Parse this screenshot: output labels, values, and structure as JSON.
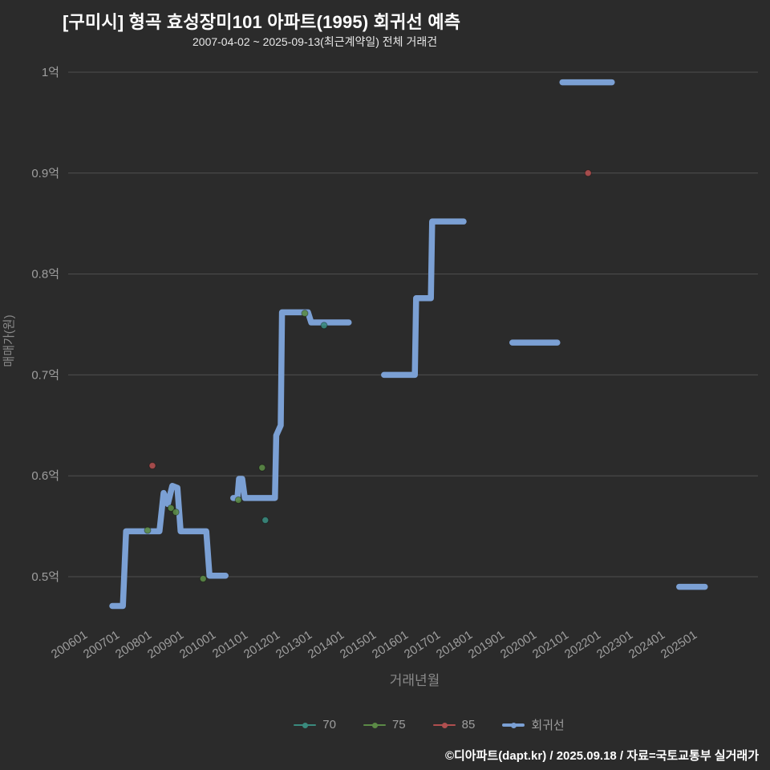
{
  "title": "[구미시] 형곡 효성장미101 아파트(1995) 회귀선 예측",
  "subtitle": "2007-04-02 ~ 2025-09-13(최근계약일) 전체 거래건",
  "footer": "©디아파트(dapt.kr) / 2025.09.18 / 자료=국토교통부 실거래가",
  "colors": {
    "background": "#2b2b2b",
    "grid": "#4f4f4f",
    "title_text": "#ffffff",
    "subtitle_text": "#e8e8e8",
    "tick_text": "#9e9e9e",
    "axis_label_text": "#8a8a8a",
    "regression": "#7ba0d4",
    "s70": "#3a8a7d",
    "s75": "#5b8a46",
    "s85": "#b04f4f",
    "footer_text": "#ffffff",
    "legend_text": "#9e9e9e"
  },
  "chart_data": {
    "type": "line",
    "title": "[구미시] 형곡 효성장미101 아파트(1995) 회귀선 예측",
    "subtitle": "2007-04-02 ~ 2025-09-13(최근계약일) 전체 거래건",
    "xlabel": "거래년월",
    "ylabel": "매매가(원)",
    "ylim": [
      0.45,
      1.02
    ],
    "grid": "horizontal-only",
    "legend_position": "bottom-center",
    "yticks": [
      {
        "value": 1.0,
        "label": "1억"
      },
      {
        "value": 0.9,
        "label": "0.9억"
      },
      {
        "value": 0.8,
        "label": "0.8억"
      },
      {
        "value": 0.7,
        "label": "0.7억"
      },
      {
        "value": 0.6,
        "label": "0.6억"
      },
      {
        "value": 0.5,
        "label": "0.5억"
      }
    ],
    "xticks": [
      {
        "value": 2006,
        "label": "200601"
      },
      {
        "value": 2007,
        "label": "200701"
      },
      {
        "value": 2008,
        "label": "200801"
      },
      {
        "value": 2009,
        "label": "200901"
      },
      {
        "value": 2010,
        "label": "201001"
      },
      {
        "value": 2011,
        "label": "201101"
      },
      {
        "value": 2012,
        "label": "201201"
      },
      {
        "value": 2013,
        "label": "201301"
      },
      {
        "value": 2014,
        "label": "201401"
      },
      {
        "value": 2015,
        "label": "201501"
      },
      {
        "value": 2016,
        "label": "201601"
      },
      {
        "value": 2017,
        "label": "201701"
      },
      {
        "value": 2018,
        "label": "201801"
      },
      {
        "value": 2019,
        "label": "201901"
      },
      {
        "value": 2020,
        "label": "202001"
      },
      {
        "value": 2021,
        "label": "202101"
      },
      {
        "value": 2022,
        "label": "202201"
      },
      {
        "value": 2023,
        "label": "202301"
      },
      {
        "value": 2024,
        "label": "202401"
      },
      {
        "value": 2025,
        "label": "202501"
      }
    ],
    "legend": [
      {
        "label": "70",
        "color_key": "s70",
        "thick": false
      },
      {
        "label": "75",
        "color_key": "s75",
        "thick": false
      },
      {
        "label": "85",
        "color_key": "s85",
        "thick": false
      },
      {
        "label": "회귀선",
        "color_key": "regression",
        "thick": true
      }
    ],
    "regression_segments": [
      [
        [
          2006.95,
          0.471
        ],
        [
          2007.28,
          0.471
        ],
        [
          2007.38,
          0.545
        ],
        [
          2008.42,
          0.545
        ],
        [
          2008.55,
          0.583
        ],
        [
          2008.68,
          0.572
        ],
        [
          2008.82,
          0.59
        ],
        [
          2008.98,
          0.588
        ],
        [
          2009.08,
          0.545
        ],
        [
          2009.88,
          0.545
        ],
        [
          2009.98,
          0.501
        ],
        [
          2010.48,
          0.501
        ]
      ],
      [
        [
          2010.72,
          0.578
        ],
        [
          2010.85,
          0.578
        ],
        [
          2010.9,
          0.597
        ],
        [
          2011.0,
          0.597
        ],
        [
          2011.08,
          0.578
        ],
        [
          2012.02,
          0.578
        ],
        [
          2012.06,
          0.64
        ],
        [
          2012.2,
          0.65
        ],
        [
          2012.24,
          0.762
        ],
        [
          2013.05,
          0.762
        ],
        [
          2013.15,
          0.752
        ],
        [
          2014.32,
          0.752
        ]
      ],
      [
        [
          2015.42,
          0.7
        ],
        [
          2016.38,
          0.7
        ],
        [
          2016.42,
          0.776
        ],
        [
          2016.88,
          0.776
        ],
        [
          2016.92,
          0.852
        ],
        [
          2017.9,
          0.852
        ]
      ],
      [
        [
          2019.42,
          0.732
        ],
        [
          2020.82,
          0.732
        ]
      ],
      [
        [
          2020.98,
          0.99
        ],
        [
          2022.52,
          0.99
        ]
      ],
      [
        [
          2024.62,
          0.49
        ],
        [
          2025.42,
          0.49
        ]
      ]
    ],
    "scatter": {
      "70": [
        [
          2011.72,
          0.556
        ],
        [
          2013.55,
          0.749
        ]
      ],
      "75": [
        [
          2008.05,
          0.546
        ],
        [
          2008.78,
          0.568
        ],
        [
          2008.93,
          0.564
        ],
        [
          2009.78,
          0.498
        ],
        [
          2010.88,
          0.576
        ],
        [
          2011.62,
          0.608
        ],
        [
          2012.95,
          0.761
        ]
      ],
      "85": [
        [
          2008.2,
          0.61
        ],
        [
          2021.78,
          0.9
        ]
      ]
    }
  }
}
